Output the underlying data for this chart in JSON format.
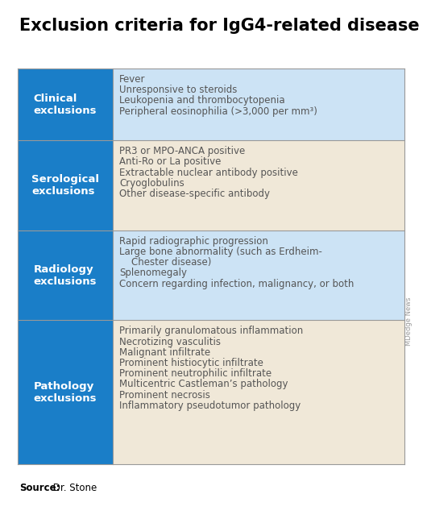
{
  "title": "Exclusion criteria for IgG4-related disease",
  "title_fontsize": 15,
  "title_color": "#000000",
  "background_color": "#ffffff",
  "header_bg_color": "#1a7ec8",
  "header_text_color": "#ffffff",
  "row_colors": [
    "#cce3f5",
    "#f0e8d8",
    "#cce3f5",
    "#f0e8d8"
  ],
  "content_text_color": "#555555",
  "border_color": "#999999",
  "source_bold": "Source:",
  "source_rest": " Dr. Stone",
  "watermark": "MDedge News",
  "rows": [
    {
      "header": "Clinical\nexclusions",
      "items": [
        "Fever",
        "Unresponsive to steroids",
        "Leukopenia and thrombocytopenia",
        "Peripheral eosinophilia (>3,000 per mm³)"
      ]
    },
    {
      "header": "Serological\nexclusions",
      "items": [
        "PR3 or MPO-ANCA positive",
        "Anti-Ro or La positive",
        "Extractable nuclear antibody positive",
        "Cryoglobulins",
        "Other disease-specific antibody"
      ]
    },
    {
      "header": "Radiology\nexclusions",
      "items": [
        "Rapid radiographic progression",
        "Large bone abnormality (such as Erdheim-\n    Chester disease)",
        "Splenomegaly",
        "Concern regarding infection, malignancy, or both"
      ]
    },
    {
      "header": "Pathology\nexclusions",
      "items": [
        "Primarily granulomatous inflammation",
        "Necrotizing vasculitis",
        "Malignant infiltrate",
        "Prominent histiocytic infiltrate",
        "Prominent neutrophilic infiltrate",
        "Multicentric Castleman’s pathology",
        "Prominent necrosis",
        "Inflammatory pseudotumor pathology"
      ]
    }
  ]
}
